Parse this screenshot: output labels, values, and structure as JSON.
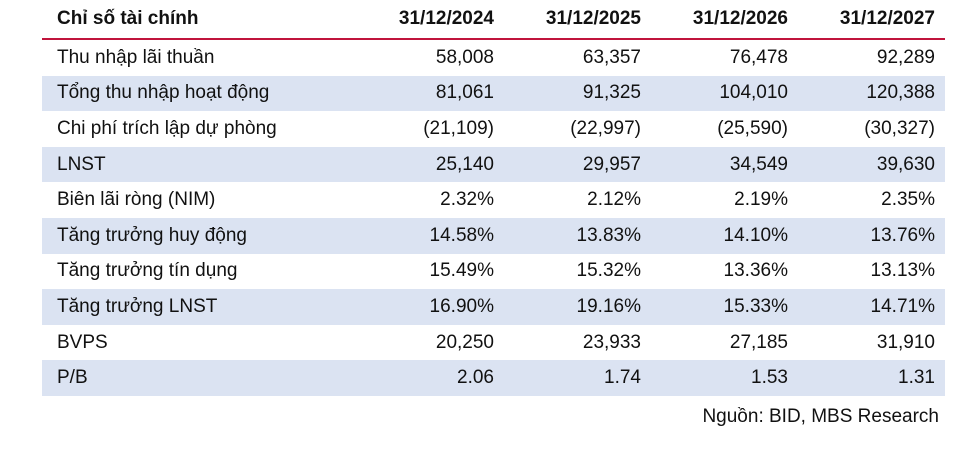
{
  "table": {
    "header": [
      "Chỉ số tài chính",
      "31/12/2024",
      "31/12/2025",
      "31/12/2026",
      "31/12/2027"
    ],
    "rows": [
      [
        "Thu nhập lãi thuần",
        "58,008",
        "63,357",
        "76,478",
        "92,289"
      ],
      [
        "Tổng thu nhập hoạt động",
        "81,061",
        "91,325",
        "104,010",
        "120,388"
      ],
      [
        "Chi phí trích lập dự phòng",
        "(21,109)",
        "(22,997)",
        "(25,590)",
        "(30,327)"
      ],
      [
        "LNST",
        "25,140",
        "29,957",
        "34,549",
        "39,630"
      ],
      [
        "Biên lãi ròng (NIM)",
        "2.32%",
        "2.12%",
        "2.19%",
        "2.35%"
      ],
      [
        "Tăng trưởng huy động",
        "14.58%",
        "13.83%",
        "14.10%",
        "13.76%"
      ],
      [
        "Tăng trưởng tín dụng",
        "15.49%",
        "15.32%",
        "13.36%",
        "13.13%"
      ],
      [
        "Tăng trưởng LNST",
        "16.90%",
        "19.16%",
        "15.33%",
        "14.71%"
      ],
      [
        "BVPS",
        "20,250",
        "23,933",
        "27,185",
        "31,910"
      ],
      [
        "P/B",
        "2.06",
        "1.74",
        "1.53",
        "1.31"
      ]
    ]
  },
  "source": "Nguồn: BID, MBS Research"
}
